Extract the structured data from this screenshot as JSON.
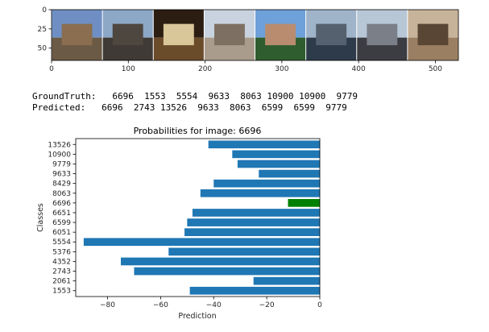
{
  "text_output": {
    "ground_truth_line": "GroundTruth:   6696  1553  5554  9633  8063 10900 10900  9779",
    "predicted_line": "Predicted:   6696  2743 13526  9633  8063  6599  6599  9779"
  },
  "image_strip": {
    "xticks": [
      "0",
      "100",
      "200",
      "300",
      "400",
      "500"
    ],
    "yticks": [
      "0",
      "25",
      "50"
    ],
    "xlim": [
      0,
      530
    ],
    "ylim": [
      66,
      0
    ],
    "thumbnails": [
      {
        "name": "thumb-palace",
        "sky": "#6f8fc4",
        "ground": "#6b5a46",
        "accent": "#8a6e4f"
      },
      {
        "name": "thumb-dome-church",
        "sky": "#8da7c7",
        "ground": "#3f3a35",
        "accent": "#4d4740"
      },
      {
        "name": "thumb-interior",
        "sky": "#2b1d12",
        "ground": "#6a4b2a",
        "accent": "#d9c79a"
      },
      {
        "name": "thumb-square",
        "sky": "#c9d3df",
        "ground": "#a99c8c",
        "accent": "#7d6f62"
      },
      {
        "name": "thumb-mosque",
        "sky": "#6ea0d9",
        "ground": "#2f5d2f",
        "accent": "#b98c6f"
      },
      {
        "name": "thumb-riverside",
        "sky": "#9fb3c9",
        "ground": "#2d3b4a",
        "accent": "#56616f"
      },
      {
        "name": "thumb-group-city",
        "sky": "#b8c7d6",
        "ground": "#3c3d42",
        "accent": "#7a7f88"
      },
      {
        "name": "thumb-courtyard",
        "sky": "#c7b39a",
        "ground": "#9a7f62",
        "accent": "#5a4634"
      }
    ]
  },
  "chart_data": {
    "type": "bar",
    "orientation": "horizontal",
    "title": "Probabilities for image: 6696",
    "xlabel": "Prediction",
    "ylabel": "Classes",
    "xlim": [
      -92,
      0
    ],
    "xticks": [
      -80,
      -60,
      -40,
      -20,
      0
    ],
    "categories": [
      "1553",
      "2061",
      "2743",
      "4352",
      "5376",
      "5554",
      "6051",
      "6599",
      "6651",
      "6696",
      "8063",
      "8429",
      "9633",
      "9779",
      "10900",
      "13526"
    ],
    "values": [
      -49,
      -25,
      -70,
      -75,
      -57,
      -89,
      -51,
      -50,
      -48,
      -12,
      -45,
      -40,
      -23,
      -31,
      -33,
      -42
    ],
    "colors": [
      "#1f77b4",
      "#1f77b4",
      "#1f77b4",
      "#1f77b4",
      "#1f77b4",
      "#1f77b4",
      "#1f77b4",
      "#1f77b4",
      "#1f77b4",
      "#008000",
      "#1f77b4",
      "#1f77b4",
      "#1f77b4",
      "#1f77b4",
      "#1f77b4",
      "#1f77b4"
    ],
    "grid": false
  }
}
